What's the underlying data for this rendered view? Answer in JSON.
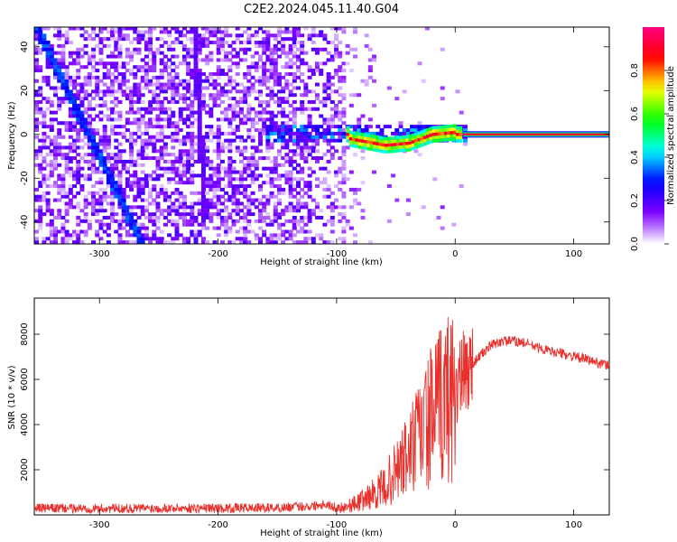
{
  "title": "C2E2.2024.045.11.40.G04",
  "chart_data": [
    {
      "type": "heatmap",
      "xlabel": "Height of straight line (km)",
      "ylabel": "Frequency (Hz)",
      "xlim": [
        -355,
        130
      ],
      "ylim": [
        -50,
        49
      ],
      "xticks": [
        -300,
        -200,
        -100,
        0,
        100
      ],
      "yticks": [
        -40,
        -20,
        0,
        20,
        40
      ],
      "colorbar": {
        "label": "Normalized spectral amplitude",
        "range": [
          0.0,
          1.0
        ],
        "ticks": [
          0.0,
          0.2,
          0.4,
          0.6,
          0.8
        ],
        "colors": [
          "#ffffff",
          "#7f00ff",
          "#0000ff",
          "#00ffff",
          "#00ff00",
          "#ffff00",
          "#ff0000",
          "#ff0080"
        ]
      },
      "features": {
        "satellite_trace_1": {
          "x": [
            -352,
            -268
          ],
          "y": [
            45,
            -48
          ],
          "amplitude": 0.25
        },
        "satellite_trace_2": {
          "x": [
            -222,
            -212
          ],
          "y": [
            48,
            -40
          ],
          "amplitude": 0.15
        },
        "reflection_line": {
          "x": [
            -90,
            130
          ],
          "y": [
            0,
            0
          ],
          "amplitude": 0.9
        },
        "transition_curve": {
          "x": [
            -90,
            -60,
            -40,
            -20,
            0
          ],
          "y": [
            -2,
            -5,
            -4,
            0,
            1
          ]
        }
      }
    },
    {
      "type": "line",
      "xlabel": "Height of straight line (km)",
      "ylabel": "SNR (10 * v/v)",
      "xlim": [
        -355,
        130
      ],
      "ylim": [
        0,
        9600
      ],
      "xticks": [
        -300,
        -200,
        -100,
        0,
        100
      ],
      "yticks": [
        2000,
        4000,
        6000,
        8000
      ],
      "color": "#e8302c",
      "x": [
        -355,
        -300,
        -250,
        -200,
        -150,
        -120,
        -110,
        -100,
        -90,
        -80,
        -70,
        -60,
        -50,
        -40,
        -30,
        -20,
        -10,
        0,
        10,
        20,
        30,
        40,
        50,
        60,
        70,
        80,
        90,
        100,
        110,
        120,
        130
      ],
      "y": [
        300,
        280,
        300,
        300,
        320,
        400,
        500,
        300,
        400,
        600,
        900,
        1200,
        1900,
        2600,
        3500,
        4300,
        5000,
        5600,
        6400,
        7000,
        7500,
        7700,
        7700,
        7600,
        7400,
        7250,
        7150,
        7000,
        6900,
        6750,
        6600
      ]
    }
  ]
}
